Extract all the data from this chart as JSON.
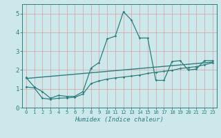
{
  "title": "",
  "xlabel": "Humidex (Indice chaleur)",
  "ylabel": "",
  "xlim": [
    -0.5,
    23.5
  ],
  "ylim": [
    0,
    5.5
  ],
  "xticks": [
    0,
    1,
    2,
    3,
    4,
    5,
    6,
    7,
    8,
    9,
    10,
    11,
    12,
    13,
    14,
    15,
    16,
    17,
    18,
    19,
    20,
    21,
    22,
    23
  ],
  "yticks": [
    0,
    1,
    2,
    3,
    4,
    5
  ],
  "bg_color": "#cce8ea",
  "grid_color": "#b0d0d3",
  "line_color": "#2d7d7d",
  "line1_x": [
    0,
    1,
    2,
    3,
    4,
    5,
    6,
    7,
    8,
    9,
    10,
    11,
    12,
    13,
    14,
    15,
    16,
    17,
    18,
    19,
    20,
    21,
    22,
    23
  ],
  "line1_y": [
    1.6,
    1.1,
    0.85,
    0.5,
    0.65,
    0.6,
    0.6,
    0.85,
    2.1,
    2.4,
    3.65,
    3.8,
    5.1,
    4.65,
    3.7,
    3.7,
    1.45,
    1.45,
    2.45,
    2.5,
    2.0,
    2.05,
    2.5,
    2.5
  ],
  "line2_x": [
    0,
    1,
    2,
    3,
    4,
    5,
    6,
    7,
    8,
    9,
    10,
    11,
    12,
    13,
    14,
    15,
    16,
    17,
    18,
    19,
    20,
    21,
    22,
    23
  ],
  "line2_y": [
    1.1,
    1.05,
    0.5,
    0.45,
    0.5,
    0.52,
    0.55,
    0.72,
    1.28,
    1.42,
    1.52,
    1.58,
    1.63,
    1.68,
    1.73,
    1.82,
    1.88,
    1.93,
    1.98,
    2.08,
    2.13,
    2.18,
    2.28,
    2.38
  ],
  "line3_x": [
    0,
    23
  ],
  "line3_y": [
    1.55,
    2.42
  ]
}
